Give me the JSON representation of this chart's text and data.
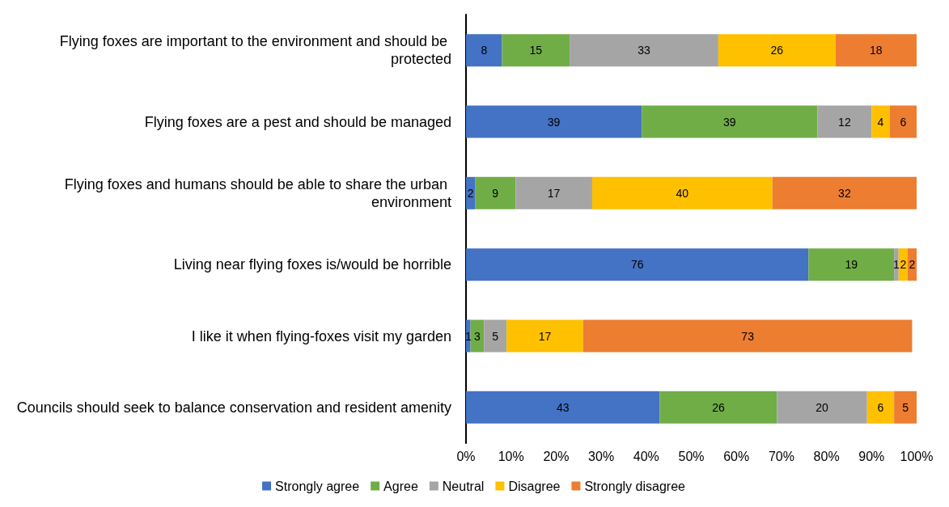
{
  "chart_data": {
    "type": "bar",
    "orientation": "horizontal",
    "stacked": true,
    "data_labels": true,
    "legend": "bottom",
    "grid": false,
    "categories": [
      "Flying foxes are important to the environment and should be protected",
      "Flying foxes are a pest and should be managed",
      "Flying foxes and humans should be able to share the urban environment",
      "Living near flying foxes is/would be horrible",
      "I like it when flying-foxes visit my garden",
      "Councils should seek to balance conservation and resident amenity"
    ],
    "series": [
      {
        "name": "Strongly agree",
        "color": "#4472c4",
        "values": [
          8,
          39,
          2,
          76,
          1,
          43
        ]
      },
      {
        "name": "Agree",
        "color": "#70ad47",
        "values": [
          15,
          39,
          9,
          19,
          3,
          26
        ]
      },
      {
        "name": "Neutral",
        "color": "#a5a5a5",
        "values": [
          33,
          12,
          17,
          1,
          5,
          20
        ]
      },
      {
        "name": "Disagree",
        "color": "#ffc000",
        "values": [
          26,
          4,
          40,
          2,
          17,
          6
        ]
      },
      {
        "name": "Strongly disagree",
        "color": "#ed7d31",
        "values": [
          18,
          6,
          32,
          2,
          73,
          5
        ]
      }
    ],
    "xlim": [
      0,
      100
    ],
    "xticks": [
      {
        "value": 0,
        "label": "0%"
      },
      {
        "value": 10,
        "label": "10%"
      },
      {
        "value": 20,
        "label": "20%"
      },
      {
        "value": 30,
        "label": "30%"
      },
      {
        "value": 40,
        "label": "40%"
      },
      {
        "value": 50,
        "label": "50%"
      },
      {
        "value": 60,
        "label": "60%"
      },
      {
        "value": 70,
        "label": "70%"
      },
      {
        "value": 80,
        "label": "80%"
      },
      {
        "value": 90,
        "label": "90%"
      },
      {
        "value": 100,
        "label": "100%"
      }
    ]
  }
}
